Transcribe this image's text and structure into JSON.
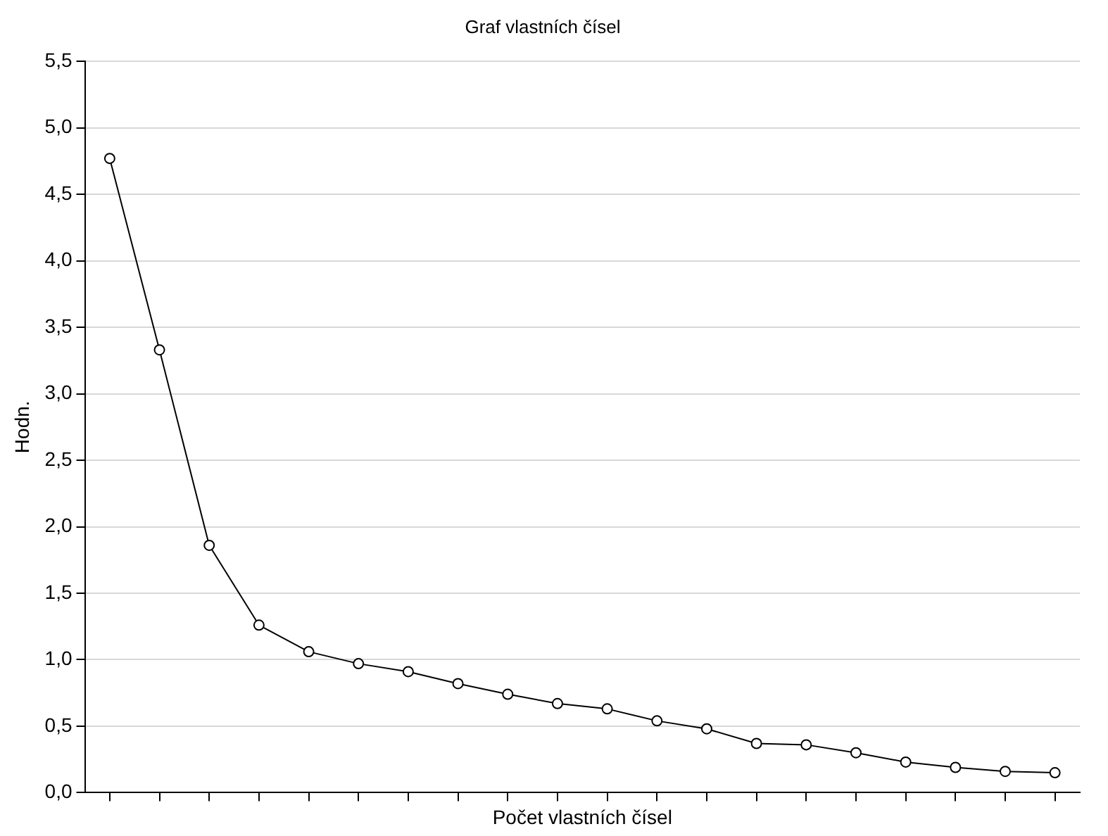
{
  "chart_data": {
    "type": "line",
    "title": "Graf vlastních čísel",
    "xlabel": "Počet vlastních čísel",
    "ylabel": "Hodn.",
    "categories": [
      null,
      null,
      null,
      null,
      null,
      null,
      null,
      null,
      null,
      null,
      null,
      null,
      null,
      null,
      null,
      null,
      null,
      null,
      null,
      null
    ],
    "series": [
      {
        "color": "#000000",
        "values": [
          4.77,
          3.33,
          1.86,
          1.26,
          1.06,
          0.97,
          0.91,
          0.82,
          0.74,
          0.67,
          0.63,
          0.54,
          0.48,
          0.37,
          0.36,
          0.3,
          0.23,
          0.19,
          0.16,
          0.15
        ]
      }
    ],
    "ylim": [
      0,
      5.5
    ],
    "yticks": [
      {
        "value": 0,
        "label": "0,0"
      },
      {
        "value": 0.5,
        "label": "0,5"
      },
      {
        "value": 1,
        "label": "1,0"
      },
      {
        "value": 1.5,
        "label": "1,5"
      },
      {
        "value": 2,
        "label": "2,0"
      },
      {
        "value": 2.5,
        "label": "2,5"
      },
      {
        "value": 3,
        "label": "3,0"
      },
      {
        "value": 3.5,
        "label": "3,5"
      },
      {
        "value": 4,
        "label": "4,0"
      },
      {
        "value": 4.5,
        "label": "4,5"
      },
      {
        "value": 5,
        "label": "5,0"
      },
      {
        "value": 5.5,
        "label": "5,5"
      }
    ],
    "grid": "y",
    "legend": false,
    "marker": "circle",
    "line_style": "solid",
    "tick_labels": "y"
  }
}
